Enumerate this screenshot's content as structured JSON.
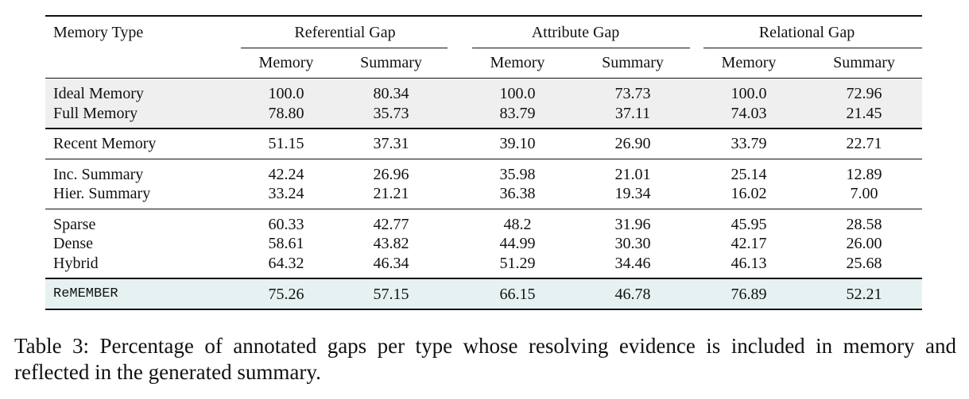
{
  "table": {
    "header": {
      "first": "Memory Type",
      "groups": [
        {
          "name": "Referential Gap",
          "columns": [
            "Memory",
            "Summary"
          ]
        },
        {
          "name": "Attribute Gap",
          "columns": [
            "Memory",
            "Summary"
          ]
        },
        {
          "name": "Relational Gap",
          "columns": [
            "Memory",
            "Summary"
          ]
        }
      ]
    },
    "blocks": [
      [
        {
          "label": "Ideal Memory",
          "values": [
            "100.0",
            "80.34",
            "100.0",
            "73.73",
            "100.0",
            "72.96"
          ]
        },
        {
          "label": "Full Memory",
          "values": [
            "78.80",
            "35.73",
            "83.79",
            "37.11",
            "74.03",
            "21.45"
          ]
        }
      ],
      [
        {
          "label": "Recent Memory",
          "values": [
            "51.15",
            "37.31",
            "39.10",
            "26.90",
            "33.79",
            "22.71"
          ]
        }
      ],
      [
        {
          "label": "Inc. Summary",
          "values": [
            "42.24",
            "26.96",
            "35.98",
            "21.01",
            "25.14",
            "12.89"
          ]
        },
        {
          "label": "Hier. Summary",
          "values": [
            "33.24",
            "21.21",
            "36.38",
            "19.34",
            "16.02",
            "7.00"
          ]
        }
      ],
      [
        {
          "label": "Sparse",
          "values": [
            "60.33",
            "42.77",
            "48.2",
            "31.96",
            "45.95",
            "28.58"
          ]
        },
        {
          "label": "Dense",
          "values": [
            "58.61",
            "43.82",
            "44.99",
            "30.30",
            "42.17",
            "26.00"
          ]
        },
        {
          "label": "Hybrid",
          "values": [
            "64.32",
            "46.34",
            "51.29",
            "34.46",
            "46.13",
            "25.68"
          ]
        }
      ],
      [
        {
          "label": "ReMEMBER",
          "values": [
            "75.26",
            "57.15",
            "66.15",
            "46.78",
            "76.89",
            "52.21"
          ]
        }
      ]
    ]
  },
  "caption": "Table 3: Percentage of annotated gaps per type whose resolving evidence is included in memory and reflected in the generated summary."
}
